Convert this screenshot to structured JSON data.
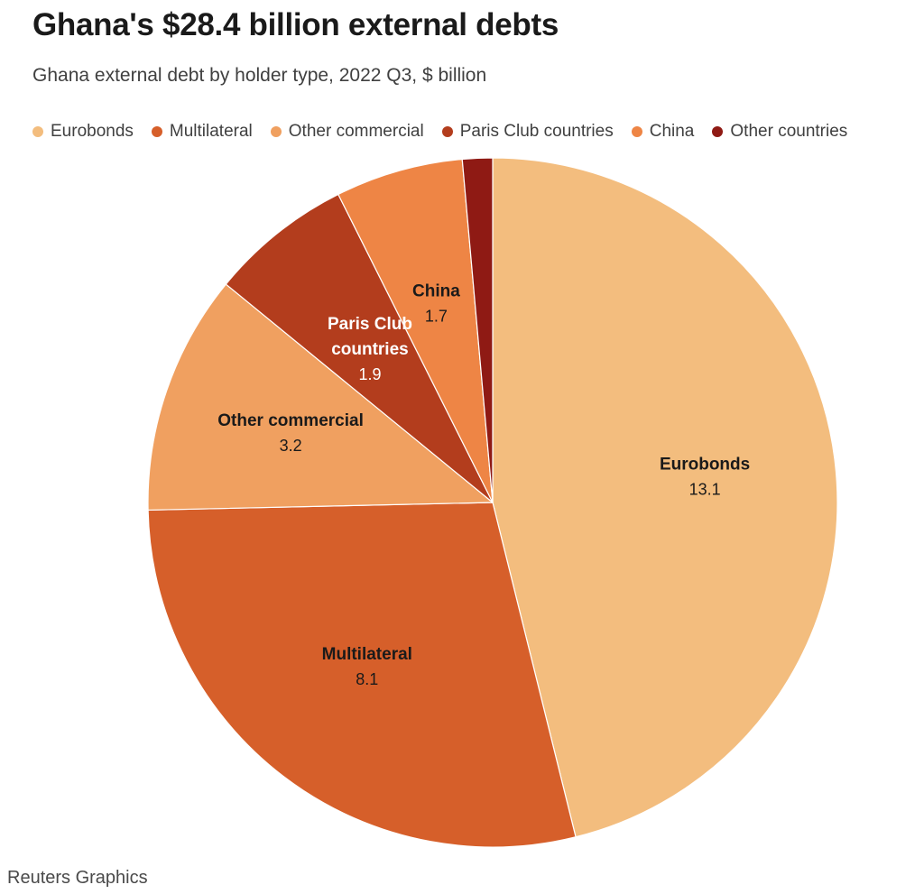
{
  "chart_data": {
    "type": "pie",
    "title": "Ghana's $28.4 billion external debts",
    "subtitle": "Ghana external debt by holder type, 2022 Q3, $ billion",
    "legend_position": "top",
    "slices": [
      {
        "name": "Eurobonds",
        "label_lines": [
          "Eurobonds"
        ],
        "value": 13.1,
        "value_label": "13.1",
        "color": "#f3bd7e",
        "text_color": "#1a1a1a"
      },
      {
        "name": "Multilateral",
        "label_lines": [
          "Multilateral"
        ],
        "value": 8.1,
        "value_label": "8.1",
        "color": "#d65f2a",
        "text_color": "#1a1a1a"
      },
      {
        "name": "Other commercial",
        "label_lines": [
          "Other commercial"
        ],
        "value": 3.2,
        "value_label": "3.2",
        "color": "#f0a060",
        "text_color": "#1a1a1a"
      },
      {
        "name": "Paris Club countries",
        "label_lines": [
          "Paris Club",
          "countries"
        ],
        "value": 1.9,
        "value_label": "1.9",
        "color": "#b33d1d",
        "text_color": "#ffffff"
      },
      {
        "name": "China",
        "label_lines": [
          "China"
        ],
        "value": 1.7,
        "value_label": "1.7",
        "color": "#ee8545",
        "text_color": "#1a1a1a"
      },
      {
        "name": "Other countries",
        "label_lines": [],
        "value": 0.4,
        "value_label": "",
        "color": "#8f1a14",
        "text_color": "#ffffff"
      }
    ]
  },
  "credit": "Reuters Graphics"
}
